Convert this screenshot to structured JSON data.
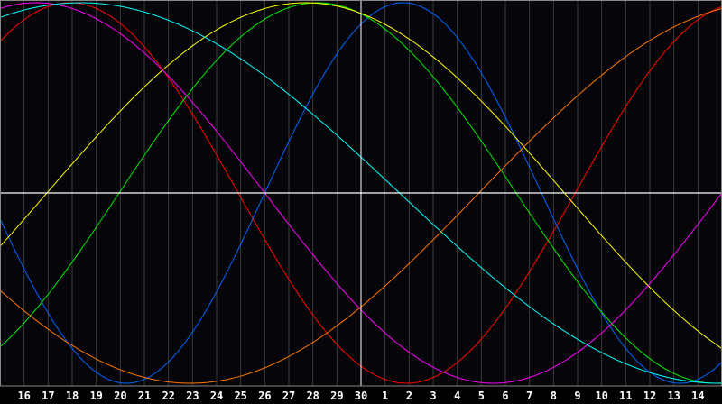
{
  "chart_data": {
    "type": "line",
    "title": "",
    "xlabel": "",
    "ylabel": "",
    "x_tick_labels": [
      "16",
      "17",
      "18",
      "19",
      "20",
      "21",
      "22",
      "23",
      "24",
      "25",
      "26",
      "27",
      "28",
      "29",
      "30",
      "1",
      "2",
      "3",
      "4",
      "5",
      "6",
      "7",
      "8",
      "9",
      "10",
      "11",
      "12",
      "13",
      "14"
    ],
    "highlight_day": "30",
    "ylim": [
      -100,
      100
    ],
    "grid": true,
    "background": "#060509",
    "grid_color": "#3a3a3a",
    "axis_color": "#ffffff",
    "series": [
      {
        "color": "#ff0000",
        "period_days": 28,
        "rising_zero_day_index": 22.9
      },
      {
        "color": "#0066ff",
        "period_days": 23,
        "rising_zero_day_index": 10.0
      },
      {
        "color": "#00ee00",
        "period_days": 33,
        "rising_zero_day_index": 3.95
      },
      {
        "color": "#ffff00",
        "period_days": 43,
        "rising_zero_day_index": 0.95
      },
      {
        "color": "#ff00ff",
        "period_days": 38,
        "rising_zero_day_index": 29.0
      },
      {
        "color": "#00ffff",
        "period_days": 53,
        "rising_zero_day_index": -10.9
      },
      {
        "color": "#ff7700",
        "period_days": 48,
        "rising_zero_day_index": 18.9
      }
    ]
  }
}
